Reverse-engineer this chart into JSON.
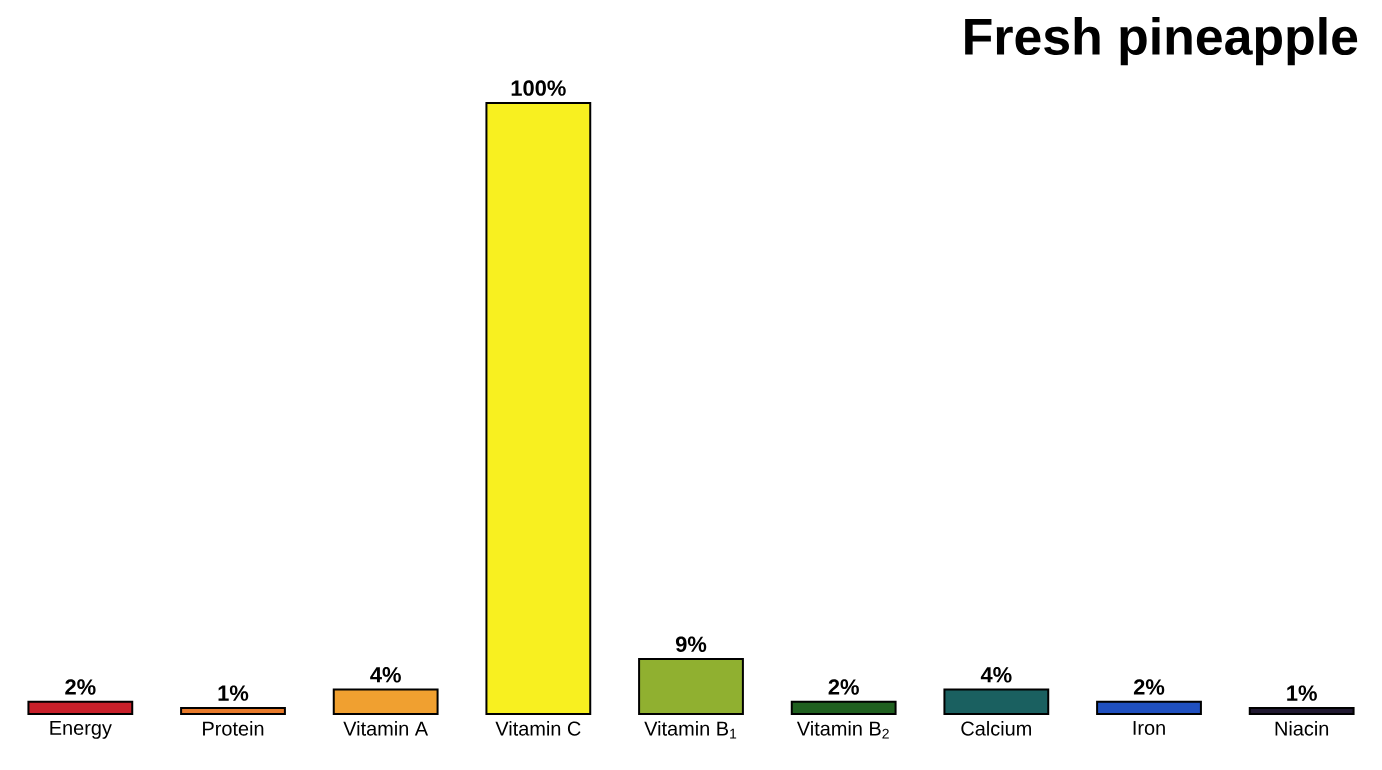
{
  "chart_data": {
    "type": "bar",
    "title": "**Fresh pineapple**",
    "categories": [
      "Energy",
      "Protein",
      "Vitamin A",
      "Vitamin C",
      "Vitamin B$_{1}$",
      "Vitamin B$_{2}$",
      "Calcium",
      "Iron",
      "Niacin"
    ],
    "values": [
      2,
      1,
      4,
      100,
      9,
      2,
      4,
      2,
      1
    ],
    "value_labels": [
      "2%",
      "1%",
      "4%",
      "100%",
      "9%",
      "2%",
      "4%",
      "2%",
      "1%"
    ],
    "colors": [
      "#c8202a",
      "#e87a2a",
      "#f0a030",
      "#f8f020",
      "#90b030",
      "#206020",
      "#1a6060",
      "#2050c0",
      "#201830"
    ]
  }
}
